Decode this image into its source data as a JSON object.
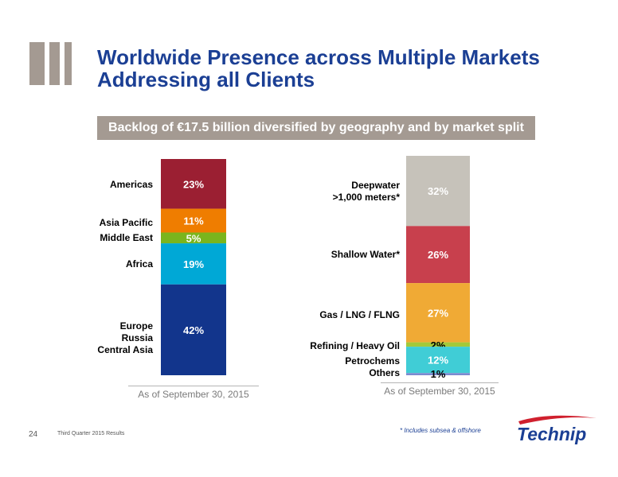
{
  "title_line1": "Worldwide Presence across Multiple Markets",
  "title_line2": "Addressing all Clients",
  "banner": "Backlog of €17.5 billion diversified by geography and by market split",
  "chart_data": [
    {
      "type": "bar",
      "stacked": true,
      "categories": [
        "Americas",
        "Asia Pacific",
        "Middle East",
        "Africa",
        "Europe Russia Central Asia"
      ],
      "values": [
        23,
        11,
        5,
        19,
        42
      ],
      "data_labels": [
        "23%",
        "11%",
        "5%",
        "19%",
        "42%"
      ],
      "colors": [
        "#9b1f32",
        "#ef7d00",
        "#7ab51d",
        "#00a8d6",
        "#12358c"
      ],
      "label_lines": {
        "americas": [
          "Americas"
        ],
        "asia_pacific": [
          "Asia Pacific"
        ],
        "middle_east": [
          "Middle East"
        ],
        "africa": [
          "Africa"
        ],
        "europe": [
          "Europe",
          "Russia",
          "Central Asia"
        ]
      },
      "note": "As of September 30, 2015"
    },
    {
      "type": "bar",
      "stacked": true,
      "categories": [
        "Deepwater >1,000 meters*",
        "Shallow Water*",
        "Gas / LNG / FLNG",
        "Refining / Heavy Oil",
        "Petrochems",
        "Others"
      ],
      "values": [
        32,
        26,
        27,
        2,
        12,
        1
      ],
      "data_labels": [
        "32%",
        "26%",
        "27%",
        "2%",
        "12%",
        "1%"
      ],
      "colors": [
        "#c6c2ba",
        "#c8404d",
        "#f0aa35",
        "#a3c93a",
        "#40cdd6",
        "#7b8bd0"
      ],
      "label_lines": {
        "deepwater": [
          "Deepwater",
          ">1,000 meters*"
        ],
        "shallow": [
          "Shallow  Water*"
        ],
        "gas": [
          "Gas / LNG / FLNG"
        ],
        "refining": [
          "Refining / Heavy Oil"
        ],
        "petrochems": [
          "Petrochems"
        ],
        "others": [
          "Others"
        ]
      },
      "note": "As of September 30, 2015"
    }
  ],
  "footer": {
    "page_number": "24",
    "text": "Third Quarter 2015 Results",
    "footnote": "* Includes subsea & offshore",
    "logo_text": "Technip"
  },
  "colors": {
    "title": "#1b3f94",
    "banner_bg": "#a49a92",
    "logo_blue": "#1b3f94",
    "logo_red": "#d0202e"
  }
}
